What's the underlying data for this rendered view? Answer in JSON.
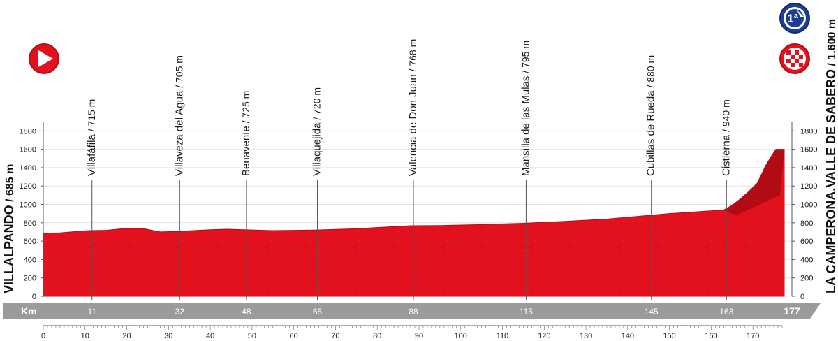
{
  "chart_data": {
    "type": "area",
    "title": "",
    "xlabel": "Km",
    "ylabel": "",
    "xlim": [
      0,
      177
    ],
    "ylim": [
      0,
      1900
    ],
    "y_ticks": [
      200,
      400,
      600,
      800,
      1000,
      1200,
      1400,
      1600,
      1800
    ],
    "x_ticks": [
      0,
      10,
      20,
      30,
      40,
      50,
      60,
      70,
      80,
      90,
      100,
      110,
      120,
      130,
      140,
      150,
      160,
      170
    ],
    "x": [
      0,
      4,
      8,
      11,
      15,
      20,
      24,
      28,
      32,
      36,
      40,
      44,
      48,
      55,
      65,
      75,
      88,
      95,
      105,
      115,
      125,
      135,
      145,
      150,
      155,
      160,
      163,
      165,
      167,
      169,
      171,
      172,
      173,
      174.5,
      175.5
    ],
    "y": [
      685,
      690,
      705,
      715,
      718,
      740,
      735,
      700,
      705,
      715,
      725,
      730,
      725,
      715,
      720,
      735,
      768,
      770,
      780,
      795,
      815,
      840,
      880,
      900,
      915,
      930,
      940,
      990,
      1060,
      1140,
      1230,
      1320,
      1420,
      1530,
      1600
    ],
    "start": {
      "name": "VILLALPANDO",
      "altitude": "685 m"
    },
    "finish": {
      "name": "LA CAMPERONA.VALLE DE SABERO",
      "altitude": "1.600 m"
    },
    "waypoints": [
      {
        "name": "Villafáfila",
        "altitude": "715 m",
        "km": 11
      },
      {
        "name": "Villaveza del Agua",
        "altitude": "705 m",
        "km": 32
      },
      {
        "name": "Benavente",
        "altitude": "725 m",
        "km": 48
      },
      {
        "name": "Villaquejida",
        "altitude": "720 m",
        "km": 65
      },
      {
        "name": "Valencia de Don Juan",
        "altitude": "768 m",
        "km": 88
      },
      {
        "name": "Mansilla de las Mulas",
        "altitude": "795 m",
        "km": 115
      },
      {
        "name": "Cubillas de Rueda",
        "altitude": "880 m",
        "km": 145
      },
      {
        "name": "Cistierna",
        "altitude": "940 m",
        "km": 163
      }
    ],
    "band": {
      "label": "Km",
      "values": [
        "11",
        "32",
        "48",
        "65",
        "88",
        "115",
        "145",
        "163"
      ],
      "total": "177"
    },
    "climb": {
      "category": "1ª",
      "km": 177
    }
  },
  "colors": {
    "profile": "#e3101d",
    "profile_dark": "#b50c15",
    "band": "#9b9b9b",
    "axis": "#555555"
  },
  "icons": {
    "start": "start-arrow-icon",
    "finish": "checkered-flag-icon",
    "climb": "mountain-category-icon"
  }
}
